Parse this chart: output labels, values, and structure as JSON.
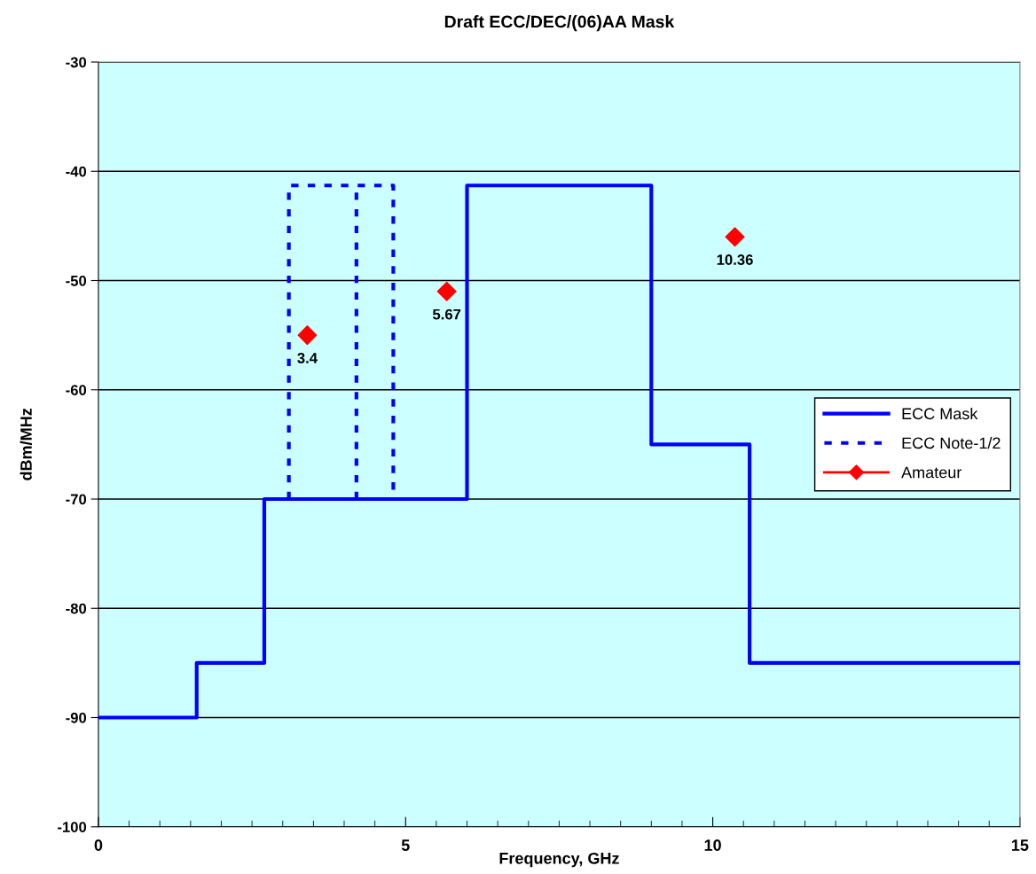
{
  "chart_data": {
    "type": "line",
    "title": "Draft ECC/DEC/(06)AA Mask",
    "xlabel": "Frequency, GHz",
    "ylabel": "dBm/MHz",
    "xlim": [
      0,
      15
    ],
    "xticks": [
      0,
      5,
      10,
      15
    ],
    "ylim": [
      -100,
      -30
    ],
    "yticks": [
      -100,
      -90,
      -80,
      -70,
      -60,
      -50,
      -40,
      -30
    ],
    "grid": "y",
    "legend": "right",
    "series": [
      {
        "name": "ECC Mask",
        "line_style": "solid",
        "marker": "none",
        "color": "#0000ff",
        "x": [
          0,
          1.6,
          1.6,
          2.7,
          2.7,
          6,
          6,
          9,
          9,
          10.6,
          10.6,
          15
        ],
        "values": [
          -90,
          -90,
          -85,
          -85,
          -70,
          -70,
          -41.3,
          -41.3,
          -65,
          -65,
          -85,
          -85
        ]
      },
      {
        "name": "ECC Note-1/2",
        "line_style": "dotted",
        "marker": "none",
        "color": "#0000ff",
        "x": [
          3.1,
          3.1,
          4.8,
          4.8,
          null,
          4.2,
          4.2
        ],
        "values": [
          -70,
          -41.3,
          -41.3,
          -70,
          null,
          -70,
          -41.3
        ]
      },
      {
        "name": "Amateur",
        "type": "scatter",
        "marker": "diamond",
        "color": "#ff0000",
        "x": [
          3.4,
          5.67,
          10.36
        ],
        "values": [
          -55,
          -51,
          -46
        ]
      }
    ],
    "annotations": [
      {
        "text": "3.4",
        "x": 3.4,
        "y": -55
      },
      {
        "text": "5.67",
        "x": 5.67,
        "y": -51
      },
      {
        "text": "10.36",
        "x": 10.36,
        "y": -46
      }
    ]
  }
}
